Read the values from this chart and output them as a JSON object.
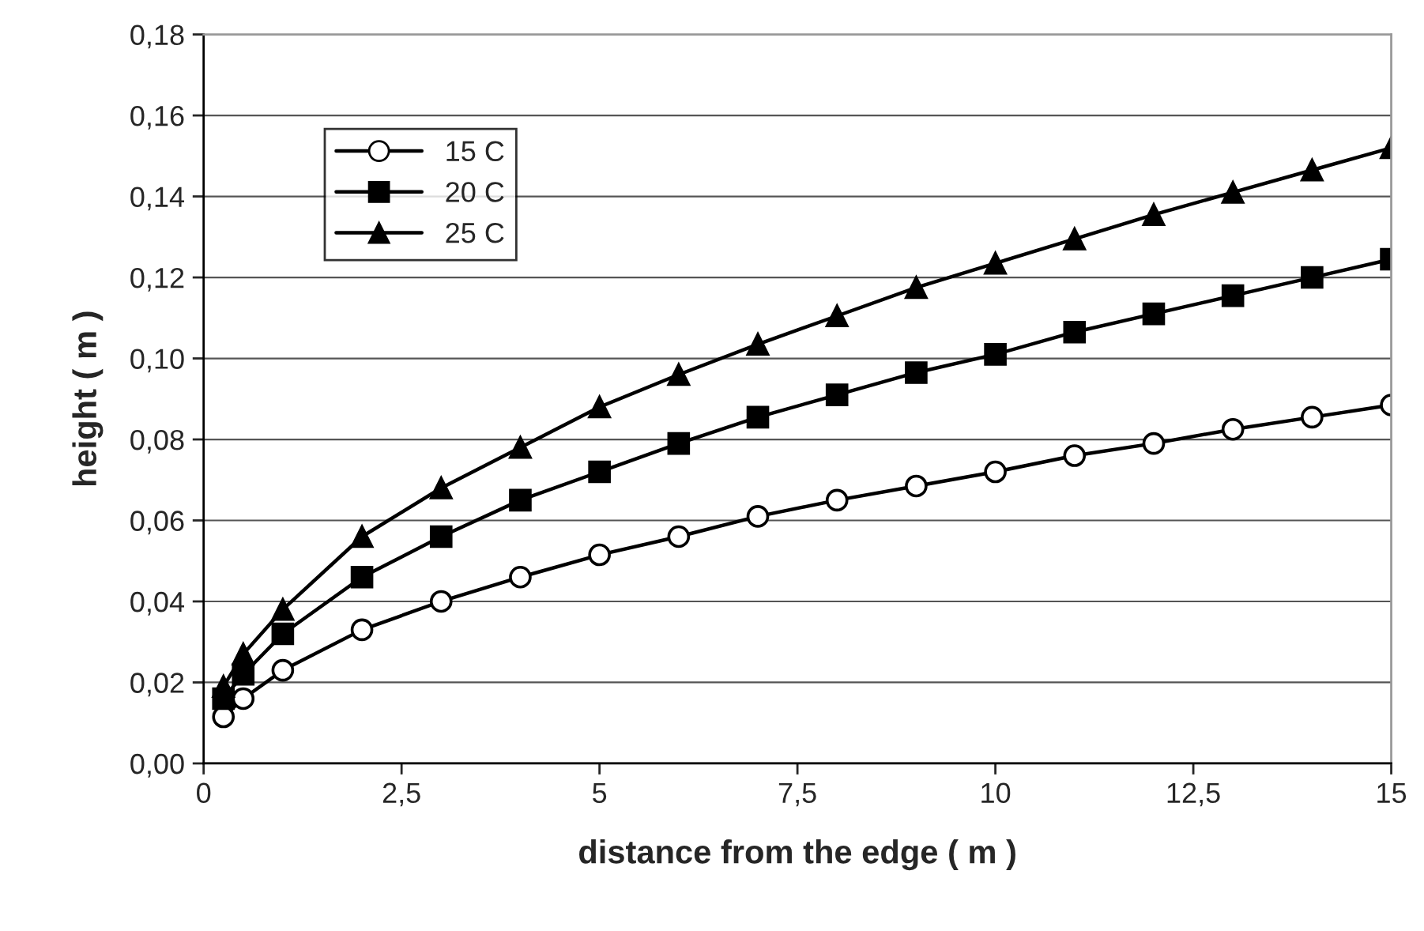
{
  "chart_data": {
    "type": "line",
    "xlabel": "distance from the edge ( m )",
    "ylabel": "height ( m )",
    "x": [
      0.25,
      0.5,
      1,
      2,
      3,
      4,
      5,
      6,
      7,
      8,
      9,
      10,
      11,
      12,
      13,
      14,
      15
    ],
    "series": [
      {
        "name": "15 C",
        "color": "#000000",
        "marker": "circle",
        "values": [
          0.0115,
          0.016,
          0.023,
          0.033,
          0.04,
          0.046,
          0.0515,
          0.056,
          0.061,
          0.065,
          0.0685,
          0.072,
          0.076,
          0.079,
          0.0825,
          0.0855,
          0.0885
        ]
      },
      {
        "name": "20 C",
        "color": "#000000",
        "marker": "square",
        "values": [
          0.016,
          0.022,
          0.032,
          0.046,
          0.056,
          0.065,
          0.072,
          0.079,
          0.0855,
          0.091,
          0.0965,
          0.101,
          0.1065,
          0.111,
          0.1155,
          0.12,
          0.1245
        ]
      },
      {
        "name": "25 C",
        "color": "#000000",
        "marker": "triangle",
        "values": [
          0.019,
          0.027,
          0.038,
          0.056,
          0.068,
          0.078,
          0.088,
          0.096,
          0.1035,
          0.1105,
          0.1175,
          0.1235,
          0.1295,
          0.1355,
          0.141,
          0.1465,
          0.152
        ]
      }
    ],
    "xlim": [
      0,
      15
    ],
    "ylim": [
      0,
      0.18
    ],
    "xticks": [
      0,
      {
        "value": 2.5,
        "label": "2,5"
      },
      5,
      {
        "value": 7.5,
        "label": "7,5"
      },
      10,
      {
        "value": 12.5,
        "label": "12,5"
      },
      15
    ],
    "yticks": [
      {
        "value": 0,
        "label": "0,00"
      },
      {
        "value": 0.02,
        "label": "0,02"
      },
      {
        "value": 0.04,
        "label": "0,04"
      },
      {
        "value": 0.06,
        "label": "0,06"
      },
      {
        "value": 0.08,
        "label": "0,08"
      },
      {
        "value": 0.1,
        "label": "0,10"
      },
      {
        "value": 0.12,
        "label": "0,12"
      },
      {
        "value": 0.14,
        "label": "0,14"
      },
      {
        "value": 0.16,
        "label": "0,16"
      },
      {
        "value": 0.18,
        "label": "0,18"
      }
    ],
    "grid": "y",
    "legend": "top left",
    "line_style": "solid"
  }
}
